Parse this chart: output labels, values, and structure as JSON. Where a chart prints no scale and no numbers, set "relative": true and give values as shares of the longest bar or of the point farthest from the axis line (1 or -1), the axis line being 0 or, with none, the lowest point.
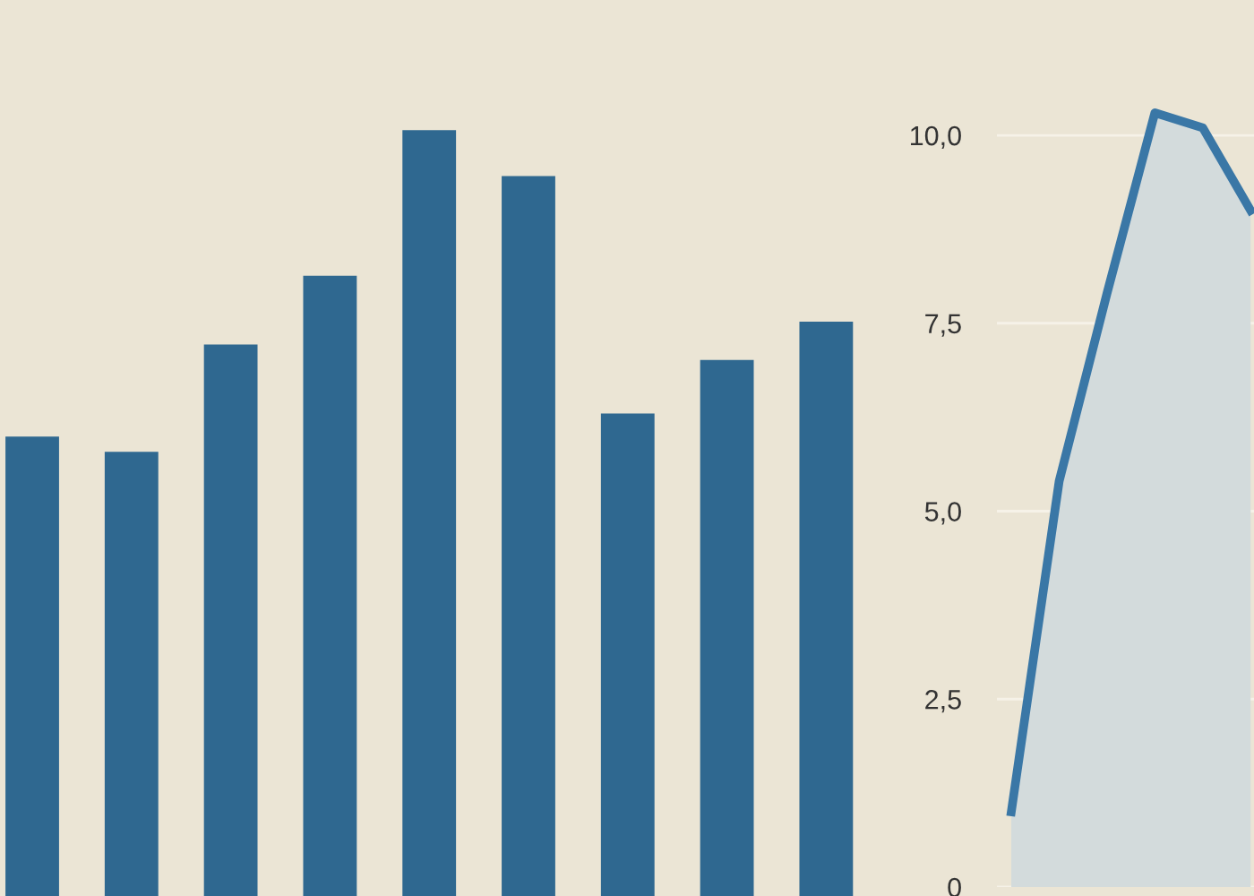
{
  "chart_data": [
    {
      "type": "bar",
      "relative": true,
      "categories": [
        null,
        null,
        null,
        null,
        null,
        null,
        null,
        null,
        null
      ],
      "values": [
        0.6,
        0.58,
        0.72,
        0.81,
        1,
        0.94,
        0.63,
        0.7,
        0.75
      ],
      "color": "#2f6890",
      "tick_labels": false
    },
    {
      "type": "area",
      "categories": [
        null,
        null,
        null,
        null,
        null,
        null
      ],
      "series": [
        {
          "color": "#3a77a6",
          "values": [
            1.0,
            5.4,
            7.9,
            10.3,
            10.1,
            9.0
          ]
        }
      ],
      "ylim": [
        0,
        11.8
      ],
      "yticks": [
        {
          "value": 0,
          "label": "0"
        },
        {
          "value": 2.5,
          "label": "2,5"
        },
        {
          "value": 5,
          "label": "5,0"
        },
        {
          "value": 7.5,
          "label": "7,5"
        },
        {
          "value": 10,
          "label": "10,0"
        }
      ],
      "grid": "y",
      "tick_labels": "y"
    }
  ]
}
